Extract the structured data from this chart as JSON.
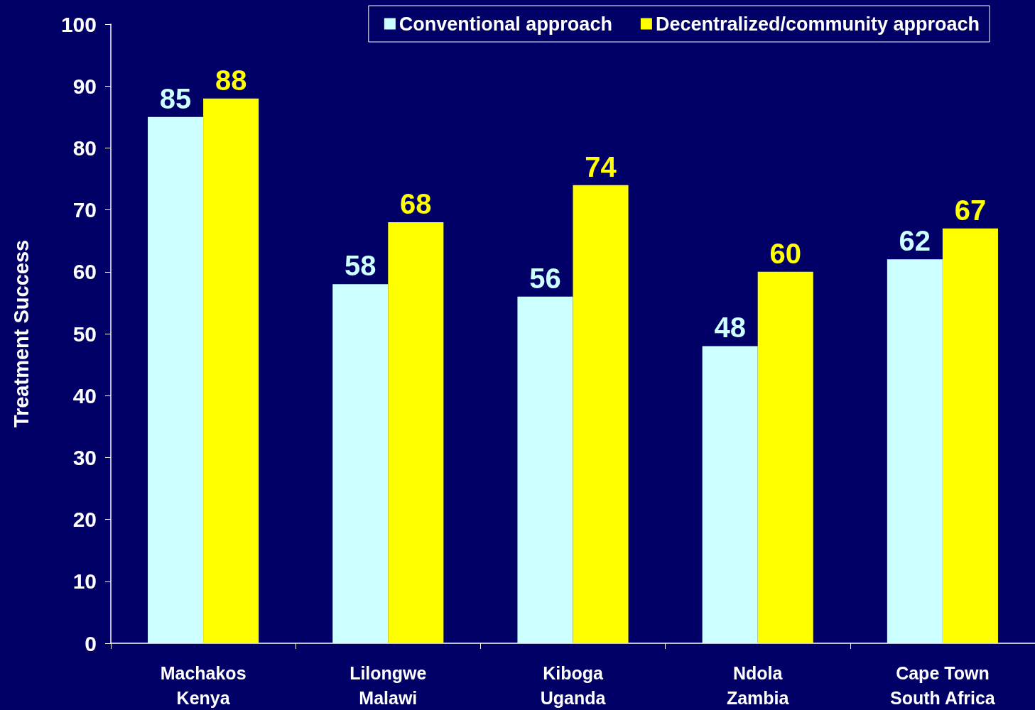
{
  "chart_data": {
    "type": "bar",
    "ylabel": "Treatment Success",
    "categories": [
      "Machakos\nKenya",
      "Lilongwe\nMalawi",
      "Kiboga\nUganda",
      "Ndola\nZambia",
      "Cape Town\nSouth Africa"
    ],
    "series": [
      {
        "name": "Conventional approach",
        "color": "#ccffff",
        "values": [
          85,
          58,
          56,
          48,
          62
        ]
      },
      {
        "name": "Decentralized/community approach",
        "color": "#ffff00",
        "values": [
          88,
          68,
          74,
          60,
          67
        ]
      }
    ],
    "ylim": [
      0,
      100
    ],
    "yticks": [
      0,
      10,
      20,
      30,
      40,
      50,
      60,
      70,
      80,
      90,
      100
    ],
    "grid": false,
    "legend": "top right",
    "data_labels": true
  }
}
